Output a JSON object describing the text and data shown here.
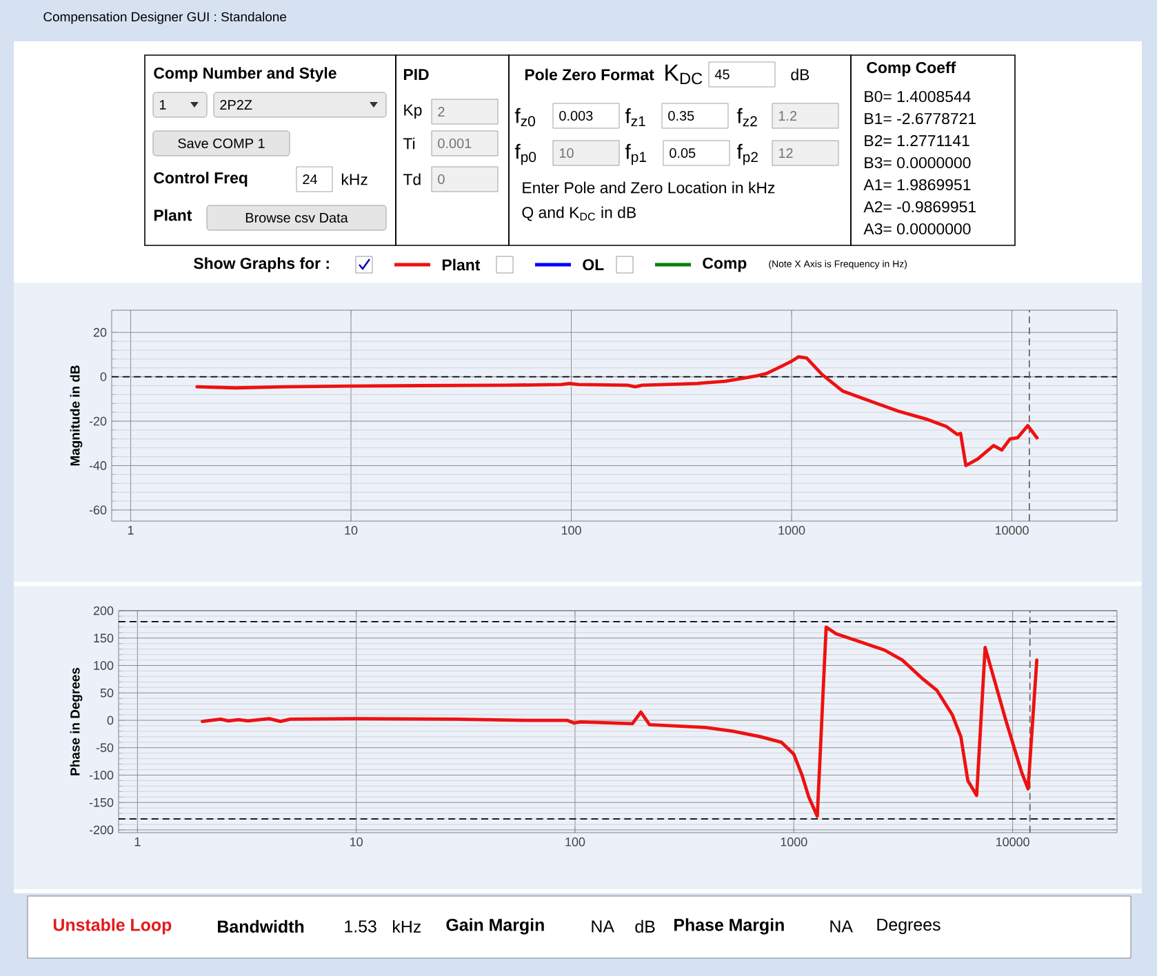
{
  "chart_data": [
    {
      "type": "line",
      "ylabel": "Magnitude in dB",
      "x": [
        2,
        3,
        5,
        10,
        20,
        50,
        90,
        98,
        108,
        180,
        195,
        210,
        300,
        373,
        500,
        575,
        700,
        770,
        890,
        1000,
        1075,
        1170,
        1375,
        1710,
        2280,
        3050,
        4070,
        5060,
        5650,
        5850,
        6180,
        7000,
        8250,
        9000,
        9800,
        10600,
        11800,
        13000
      ],
      "series": [
        {
          "name": "Plant",
          "color": "#ee1111",
          "values": [
            -4.5,
            -5,
            -4.5,
            -4.2,
            -4,
            -3.8,
            -3.5,
            -3,
            -3.5,
            -3.8,
            -4.5,
            -3.8,
            -3.3,
            -3,
            -2,
            -1,
            0.5,
            1.5,
            4.5,
            7,
            9,
            8.5,
            1,
            -6.5,
            -11,
            -15.5,
            -19,
            -22.5,
            -26,
            -25.5,
            -40,
            -37,
            -31,
            -33,
            -28,
            -27.5,
            -22,
            -27.5
          ]
        },
        {
          "name": "OL",
          "color": "#0000ff",
          "values": [
            null,
            null,
            null,
            null,
            null,
            null,
            null,
            null,
            null,
            null,
            null,
            null,
            null,
            null,
            null,
            null,
            null,
            null,
            null,
            null,
            null,
            null,
            null,
            null,
            null,
            null,
            null,
            null,
            null,
            null,
            null,
            null,
            null,
            null,
            null,
            null,
            null,
            null
          ]
        },
        {
          "name": "Comp",
          "color": "#008000",
          "values": [
            null,
            null,
            null,
            null,
            null,
            null,
            null,
            null,
            null,
            null,
            null,
            null,
            null,
            null,
            null,
            null,
            null,
            null,
            null,
            null,
            null,
            null,
            null,
            null,
            null,
            null,
            null,
            null,
            null,
            null,
            null,
            null,
            null,
            null,
            null,
            null,
            null,
            null
          ]
        }
      ],
      "xlim": [
        0.82,
        30000
      ],
      "ylim": [
        -65,
        30
      ],
      "xticks": [
        1,
        10,
        100,
        1000,
        10000
      ],
      "yticks": [
        -60,
        -40,
        -20,
        0,
        20
      ],
      "log": "x",
      "grid": true,
      "legend": "top",
      "line_style": "solid",
      "ref_lines": [
        {
          "axis": "y",
          "value": 0,
          "color": "#000000",
          "line_style": "dashed"
        },
        {
          "axis": "x",
          "value": 12000,
          "color": "#666666",
          "line_style": "dashed"
        }
      ],
      "annotations": [
        "Compensation Designer GUI : Standalone",
        "Comp Number and Style",
        "1",
        "2P2Z",
        "Save COMP 1",
        "Control Freq",
        "24",
        "kHz",
        "Plant",
        "Browse csv Data",
        "PID",
        "Kp",
        "2",
        "Ti",
        "0.001",
        "Td",
        "0",
        "Pole Zero Format",
        "K$_{DC}$",
        "45",
        "dB",
        "f$_{z0}$",
        "0.003",
        "f$_{z1}$",
        "0.35",
        "f$_{z2}$",
        "1.2",
        "f$_{p0}$",
        "10",
        "f$_{p1}$",
        "0.05",
        "f$_{p2}$",
        "12",
        "Enter Pole and Zero Location in kHz",
        "Q and K$_{DC}$ in dB",
        "Comp Coeff",
        "B0= 1.4008544",
        "B1= -2.6778721",
        "B2= 1.2771141",
        "B3= 0.0000000",
        "A1= 1.9869951",
        "A2= -0.9869951",
        "A3= 0.0000000",
        "Show Graphs for :",
        "(Note X Axis is Frequency in Hz)"
      ]
    },
    {
      "type": "line",
      "ylabel": "Phase in Degrees",
      "x": [
        1.98,
        2.4,
        2.6,
        2.9,
        3.2,
        4.0,
        4.5,
        5,
        10,
        28.5,
        59,
        92,
        99,
        106,
        183,
        200,
        219,
        394,
        527,
        705,
        877,
        1000,
        1090,
        1170,
        1280,
        1405,
        1560,
        1950,
        2600,
        3130,
        3900,
        4500,
        5300,
        5800,
        6240,
        6850,
        7490,
        9310,
        11000,
        11760,
        12900
      ],
      "series": [
        {
          "color": "#ee1111",
          "values": [
            -2,
            2,
            -1,
            1,
            -1,
            3,
            -2,
            2,
            3,
            2,
            0,
            0,
            -5,
            -3,
            -6,
            15,
            -8,
            -13,
            -20,
            -30,
            -40,
            -62,
            -100,
            -140,
            -175,
            170,
            158,
            145,
            128,
            110,
            75,
            55,
            10,
            -30,
            -110,
            -137,
            133,
            0,
            -95,
            -125,
            110
          ]
        }
      ],
      "xlim": [
        0.82,
        30000
      ],
      "ylim": [
        -205,
        200
      ],
      "xticks": [
        1,
        10,
        100,
        1000,
        10000
      ],
      "yticks": [
        -200,
        -150,
        -100,
        -50,
        0,
        50,
        100,
        150,
        200
      ],
      "log": "x",
      "grid": true,
      "line_style": "solid",
      "ref_lines": [
        {
          "axis": "y",
          "value": 180,
          "color": "#000000",
          "line_style": "dashed"
        },
        {
          "axis": "y",
          "value": -180,
          "color": "#000000",
          "line_style": "dashed"
        },
        {
          "axis": "x",
          "value": 12000,
          "color": "#666666",
          "line_style": "dashed"
        }
      ],
      "annotations": [
        "Unstable Loop",
        "Bandwidth",
        "1.53",
        "kHz",
        "Gain Margin",
        "NA",
        "dB",
        "Phase Margin",
        "NA",
        "Degrees"
      ]
    }
  ]
}
